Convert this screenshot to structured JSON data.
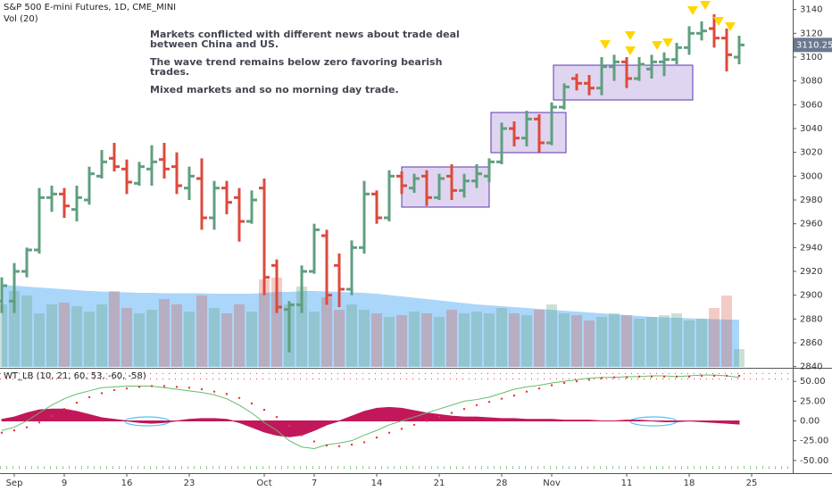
{
  "chart_data": [
    {
      "type": "ohlc",
      "title": "S&P 500 E-mini Futures, 1D, CME_MINI",
      "categories": [
        null,
        "Sep",
        null,
        null,
        null,
        "9",
        null,
        null,
        null,
        null,
        "16",
        null,
        null,
        null,
        null,
        "23",
        null,
        null,
        null,
        null,
        null,
        "Oct",
        null,
        null,
        null,
        "7",
        null,
        null,
        null,
        null,
        "14",
        null,
        null,
        null,
        null,
        "21",
        null,
        null,
        null,
        null,
        "28",
        null,
        null,
        null,
        "Nov",
        null,
        null,
        null,
        null,
        null,
        "11",
        null,
        null,
        null,
        null,
        "18",
        null,
        null,
        null,
        null,
        "25"
      ],
      "open": [
        2895,
        2895,
        2920,
        2938,
        2982,
        2985,
        2972,
        2980,
        3000,
        3015,
        3006,
        2994,
        3006,
        3014,
        3008,
        2990,
        2998,
        2965,
        2990,
        2982,
        2962,
        2990,
        2925,
        2888,
        2892,
        2920,
        2950,
        2925,
        2905,
        2940,
        2985,
        2965,
        3000,
        2990,
        3000,
        2982,
        3000,
        2988,
        2996,
        3000,
        3012,
        3040,
        3032,
        3048,
        3028,
        3058,
        3082,
        3078,
        3074,
        3092,
        3096,
        3082,
        3090,
        3096,
        3098,
        3108,
        3120,
        3124,
        3116,
        3100,
        null
      ],
      "high": [
        2915,
        2927,
        2940,
        2990,
        2992,
        2990,
        2992,
        3008,
        3022,
        3028,
        3014,
        3012,
        3026,
        3028,
        3020,
        3008,
        3015,
        2996,
        2996,
        2990,
        2988,
        2998,
        2930,
        2895,
        2925,
        2960,
        2955,
        2935,
        2946,
        2996,
        2988,
        3005,
        3004,
        3002,
        3005,
        3002,
        3010,
        3002,
        3010,
        3015,
        3045,
        3046,
        3055,
        3052,
        3062,
        3078,
        3086,
        3085,
        3100,
        3102,
        3100,
        3100,
        3102,
        3104,
        3112,
        3126,
        3130,
        3136,
        3124,
        3118,
        null
      ],
      "low": [
        2885,
        2885,
        2915,
        2935,
        2970,
        2965,
        2962,
        2976,
        2998,
        3004,
        2985,
        2992,
        2992,
        2998,
        2985,
        2980,
        2955,
        2955,
        2968,
        2945,
        2960,
        2900,
        2885,
        2852,
        2885,
        2918,
        2892,
        2890,
        2900,
        2935,
        2960,
        2962,
        2985,
        2986,
        2975,
        2980,
        2980,
        2982,
        2990,
        2995,
        3010,
        3025,
        3025,
        3020,
        3026,
        3056,
        3072,
        3068,
        3068,
        3080,
        3074,
        3080,
        3082,
        3084,
        3094,
        3102,
        3114,
        3108,
        3088,
        3094,
        null
      ],
      "close": [
        2908,
        2920,
        2938,
        2982,
        2985,
        2975,
        2982,
        3002,
        3012,
        3008,
        2995,
        3008,
        3012,
        3006,
        2992,
        3000,
        2965,
        2990,
        2978,
        2962,
        2980,
        2915,
        2890,
        2892,
        2920,
        2955,
        2900,
        2905,
        2940,
        2985,
        2965,
        3000,
        2992,
        2998,
        2982,
        2998,
        2988,
        2996,
        3002,
        3012,
        3040,
        3032,
        3048,
        3028,
        3058,
        3075,
        3078,
        3074,
        3092,
        3096,
        3082,
        3094,
        3096,
        3098,
        3108,
        3120,
        3122,
        3116,
        3102,
        3110.25,
        null
      ],
      "up_color": "#5f9f7f",
      "down_color": "#dc4a3d",
      "ylim": [
        2839,
        3148
      ],
      "yticks": [
        2840,
        2860,
        2880,
        2900,
        2920,
        2940,
        2960,
        2980,
        3000,
        3020,
        3040,
        3060,
        3080,
        3100,
        3120,
        3140
      ],
      "grid": false,
      "annotations": [
        "Markets conflicted with different news about trade deal between China and US.",
        "The wave trend remains below zero favoring bearish trades.",
        "Mixed markets and so no morning day trade."
      ],
      "volume": {
        "name": "Vol (20)",
        "values": [
          1400000,
          1700000,
          1600000,
          1200000,
          1400000,
          1440000,
          1360000,
          1240000,
          1400000,
          1700000,
          1320000,
          1200000,
          1280000,
          1520000,
          1400000,
          1240000,
          1600000,
          1320000,
          1200000,
          1400000,
          1240000,
          1960000,
          2000000,
          1400000,
          1800000,
          1240000,
          1560000,
          1280000,
          1400000,
          1280000,
          1200000,
          1120000,
          1160000,
          1240000,
          1200000,
          1120000,
          1280000,
          1200000,
          1240000,
          1200000,
          1320000,
          1200000,
          1160000,
          1280000,
          1400000,
          1200000,
          1160000,
          1040000,
          1120000,
          1200000,
          1160000,
          1080000,
          1120000,
          1160000,
          1200000,
          1040000,
          1080000,
          1320000,
          1600000,
          400000,
          null
        ],
        "ma": [
          1840000,
          1820000,
          1800000,
          1780000,
          1760000,
          1740000,
          1720000,
          1700000,
          1690000,
          1680000,
          1670000,
          1660000,
          1660000,
          1650000,
          1650000,
          1650000,
          1650000,
          1640000,
          1640000,
          1640000,
          1640000,
          1660000,
          1680000,
          1680000,
          1700000,
          1700000,
          1690000,
          1680000,
          1670000,
          1660000,
          1640000,
          1610000,
          1580000,
          1550000,
          1520000,
          1490000,
          1460000,
          1430000,
          1400000,
          1380000,
          1360000,
          1340000,
          1320000,
          1300000,
          1280000,
          1260000,
          1240000,
          1220000,
          1200000,
          1180000,
          1160000,
          1140000,
          1120000,
          1110000,
          1100000,
          1090000,
          1080000,
          1070000,
          1060000,
          1060000,
          null
        ],
        "up_color": "rgba(107,165,131,0.35)",
        "down_color": "rgba(215,84,66,0.3)",
        "ma_color": "rgba(100,181,246,0.55)"
      }
    },
    {
      "type": "oscillator",
      "title": "WT_LB (10, 21, 60, 53, -60, -58)",
      "ylim": [
        -66,
        66
      ],
      "yticks": [
        {
          "value": 50,
          "label": "50.00"
        },
        {
          "value": 25,
          "label": "25.00"
        },
        {
          "value": 0,
          "label": "0.00"
        },
        {
          "value": -25,
          "label": "-25.00"
        },
        {
          "value": -50,
          "label": "-50.00"
        }
      ],
      "levels": [
        60,
        53,
        -60,
        -58
      ],
      "wt1": [
        -12,
        -8,
        0,
        10,
        20,
        28,
        34,
        38,
        42,
        43,
        44,
        44,
        44,
        42,
        40,
        38,
        36,
        33,
        28,
        20,
        10,
        -2,
        -12,
        -25,
        -33,
        -35,
        -30,
        -28,
        -25,
        -18,
        -12,
        -5,
        0,
        5,
        10,
        15,
        20,
        25,
        27,
        30,
        35,
        40,
        43,
        45,
        48,
        50,
        52,
        54,
        55,
        55,
        56,
        56,
        57,
        57,
        56,
        57,
        58,
        58,
        57,
        55,
        null
      ],
      "wt2": [
        -15,
        -12,
        -8,
        -2,
        6,
        15,
        23,
        30,
        35,
        39,
        41,
        43,
        44,
        44,
        43,
        42,
        40,
        37,
        34,
        29,
        22,
        14,
        5,
        -6,
        -18,
        -26,
        -31,
        -32,
        -30,
        -27,
        -21,
        -15,
        -10,
        -5,
        0,
        5,
        10,
        15,
        20,
        24,
        28,
        32,
        37,
        41,
        45,
        48,
        50,
        52,
        54,
        55,
        55,
        56,
        56,
        56,
        56,
        56,
        57,
        57,
        57,
        57,
        null
      ],
      "hist": [
        2,
        5,
        10,
        14,
        15,
        15,
        12,
        8,
        4,
        2,
        0,
        -2,
        -3,
        -2,
        0,
        2,
        3,
        3,
        2,
        -2,
        -8,
        -14,
        -18,
        -20,
        -18,
        -12,
        -5,
        0,
        6,
        12,
        16,
        17,
        16,
        13,
        10,
        8,
        6,
        5,
        5,
        4,
        3,
        3,
        2,
        2,
        2,
        1,
        1,
        1,
        0,
        0,
        1,
        1,
        0,
        -1,
        -1,
        0,
        -1,
        -2,
        -3,
        -4,
        null
      ],
      "wt1_color": "#66bb6a",
      "wt2_color": "#e53935",
      "hist_color": "#c2185b",
      "level_colors": [
        "#e53935",
        "#e53935",
        "#43a047",
        "#43a047"
      ]
    }
  ]
}
